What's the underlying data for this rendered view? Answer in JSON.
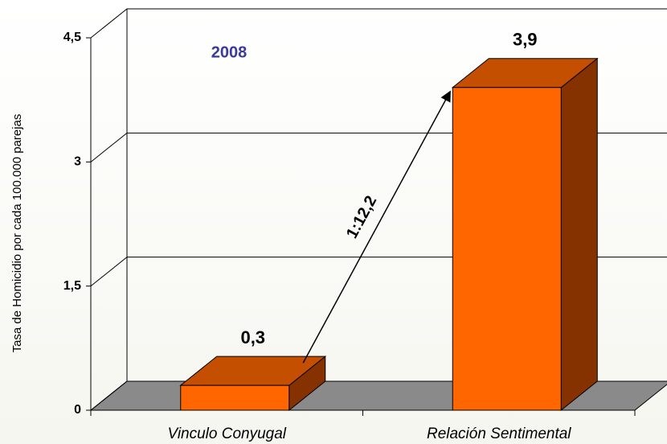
{
  "chart_data": {
    "type": "bar3d",
    "y_axis_label": "Tasa de Homicidio por cada 100.000 parejas",
    "categories": [
      "Vinculo Conyugal",
      "Relación Sentimental"
    ],
    "values": [
      0.3,
      3.9
    ],
    "value_labels": [
      "0,3",
      "3,9"
    ],
    "colors": {
      "front": "#ff6600",
      "top": "#c44f00",
      "side": "#863200",
      "floor": "#8a8a8a"
    },
    "ylim": [
      0,
      4.5
    ],
    "yticks": [
      0,
      {
        "value": 1.5,
        "label": "1,5"
      },
      3,
      {
        "value": 4.5,
        "label": "4,5"
      }
    ],
    "grid": true,
    "annotations": [
      "2008",
      "1:12,2"
    ]
  }
}
